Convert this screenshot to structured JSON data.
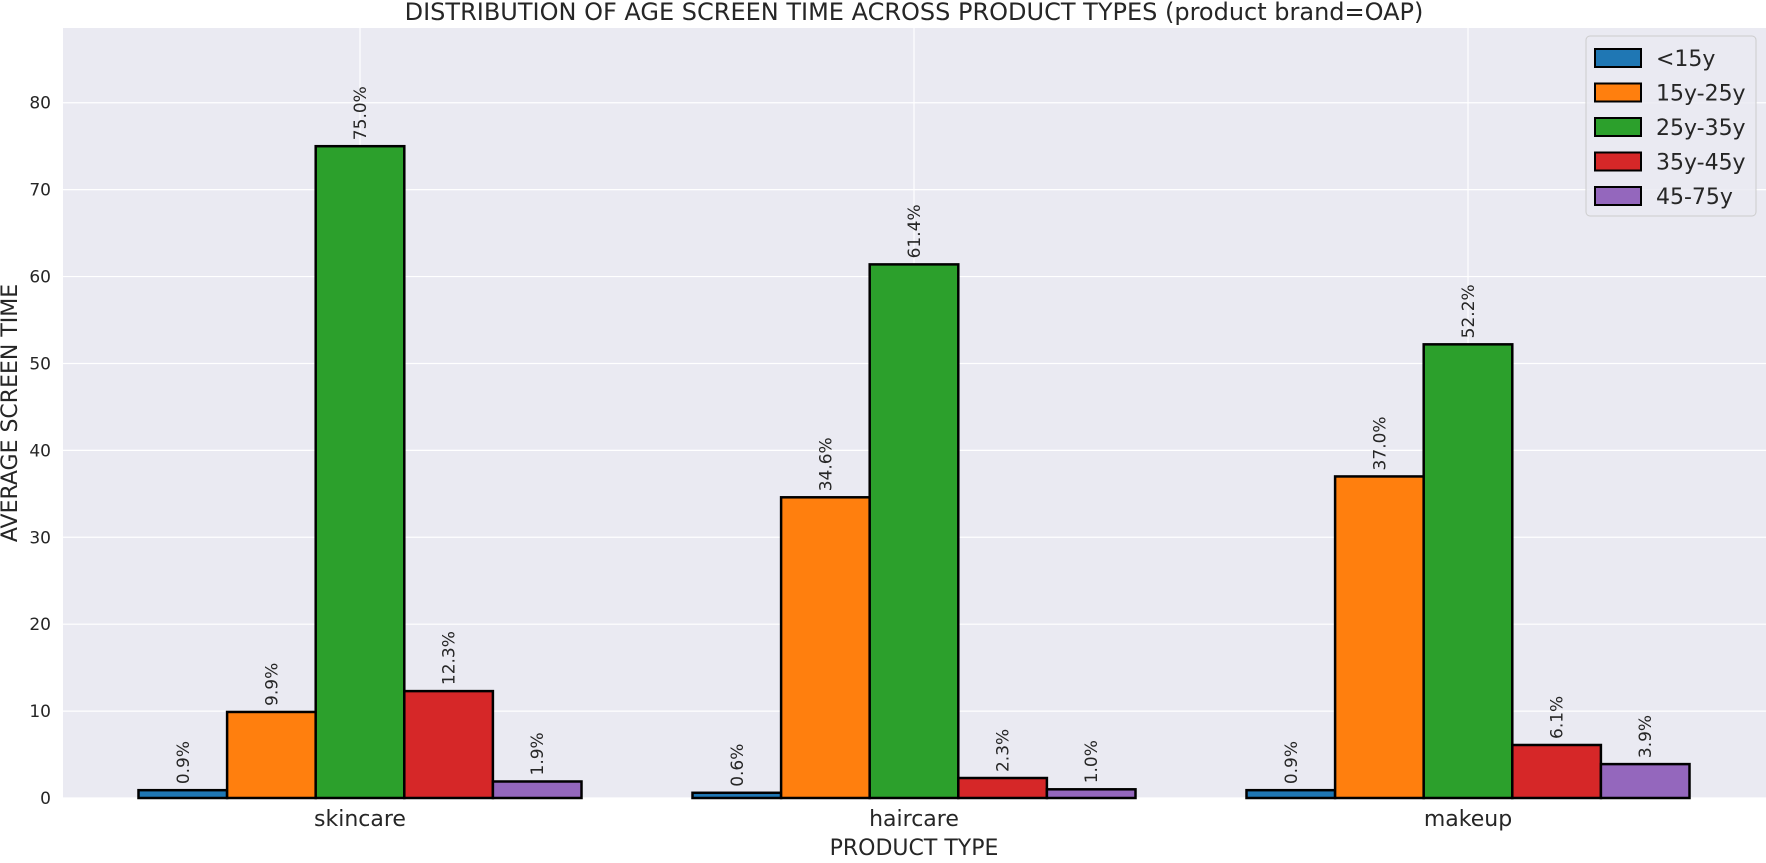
{
  "chart_data": {
    "type": "bar",
    "title": "DISTRIBUTION OF AGE SCREEN TIME ACROSS PRODUCT TYPES (product brand=OAP)",
    "xlabel": "PRODUCT TYPE",
    "ylabel": "AVERAGE SCREEN TIME",
    "categories": [
      "skincare",
      "haircare",
      "makeup"
    ],
    "series": [
      {
        "name": "<15y",
        "color": "#1f77b4",
        "values": [
          0.9,
          0.6,
          0.9
        ],
        "labels": [
          "0.9%",
          "0.6%",
          "0.9%"
        ]
      },
      {
        "name": "15y-25y",
        "color": "#ff7f0e",
        "values": [
          9.9,
          34.6,
          37.0
        ],
        "labels": [
          "9.9%",
          "34.6%",
          "37.0%"
        ]
      },
      {
        "name": "25y-35y",
        "color": "#2ca02c",
        "values": [
          75.0,
          61.4,
          52.2
        ],
        "labels": [
          "75.0%",
          "61.4%",
          "52.2%"
        ]
      },
      {
        "name": "35y-45y",
        "color": "#d62728",
        "values": [
          12.3,
          2.3,
          6.1
        ],
        "labels": [
          "12.3%",
          "2.3%",
          "6.1%"
        ]
      },
      {
        "name": "45-75y",
        "color": "#9467bd",
        "values": [
          1.9,
          1.0,
          3.9
        ],
        "labels": [
          "1.9%",
          "1.0%",
          "3.9%"
        ]
      }
    ],
    "ylim": [
      0,
      88.6
    ],
    "yticks": [
      0,
      10,
      20,
      30,
      40,
      50,
      60,
      70,
      80
    ],
    "grid": true,
    "legend_position": "top-right",
    "background_color": "#eaeaf2"
  }
}
